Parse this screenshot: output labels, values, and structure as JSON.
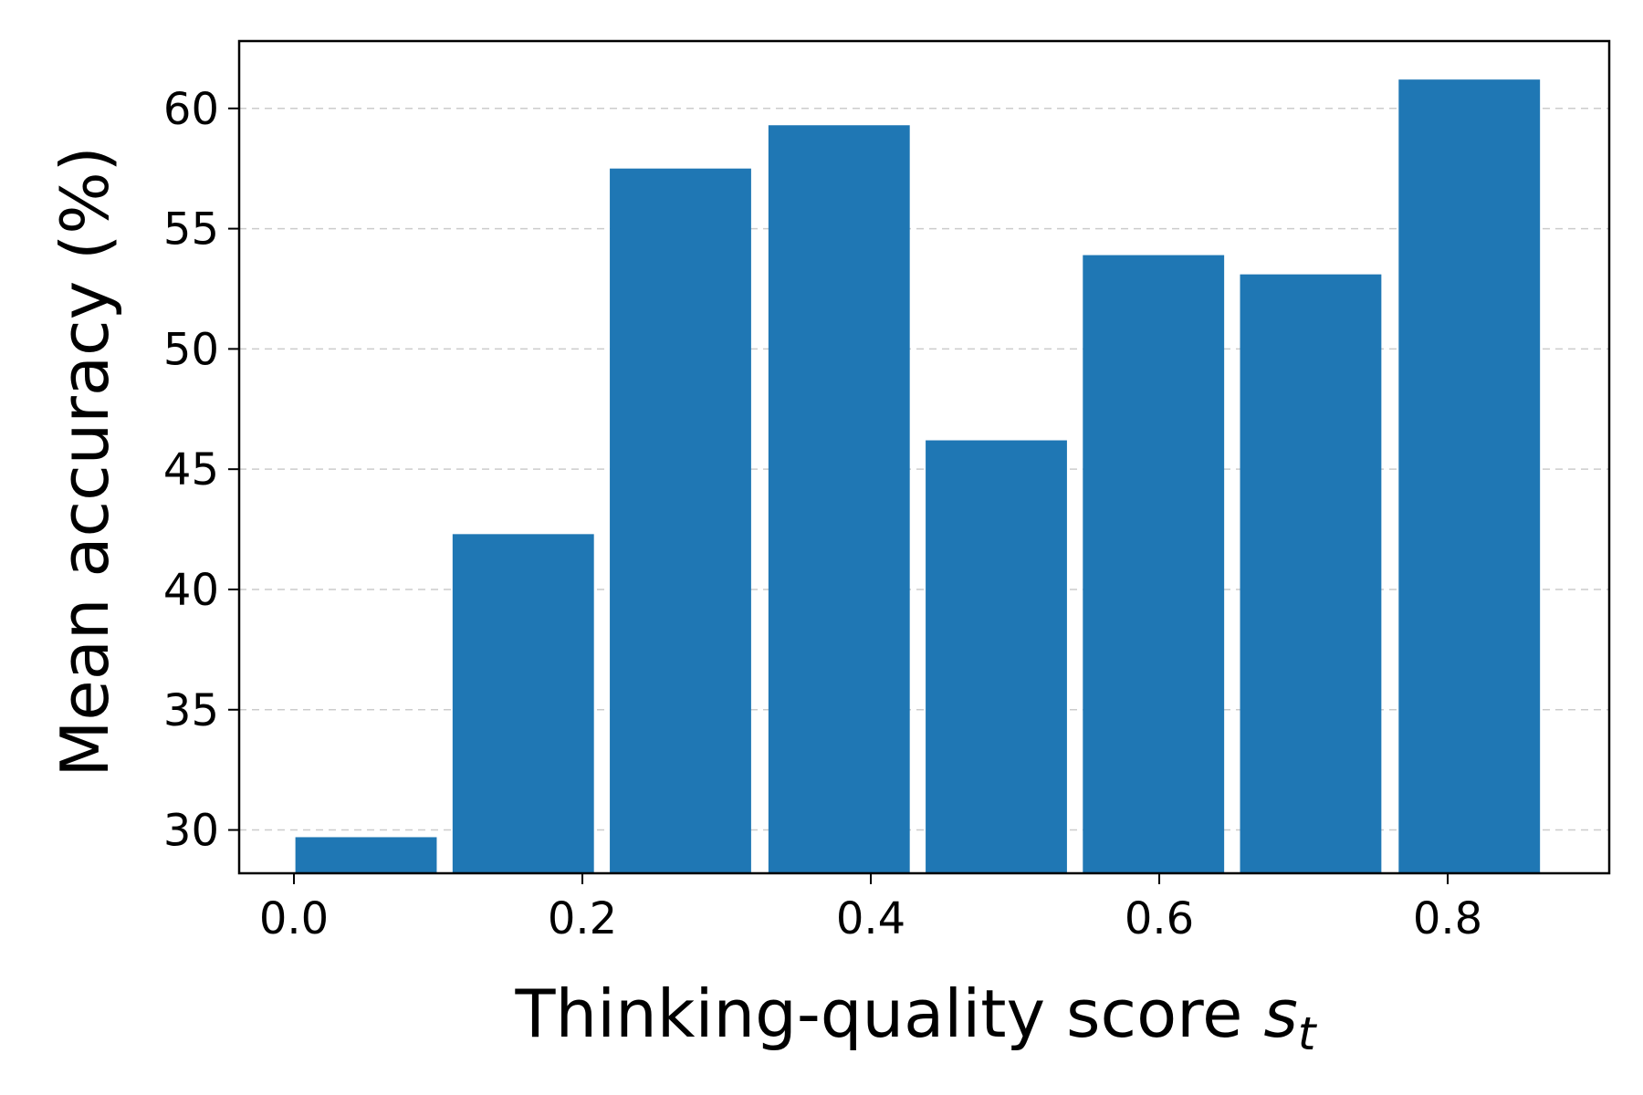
{
  "chart_data": {
    "type": "bar",
    "xlabel": "Thinking-quality score ",
    "xlabel_symbol": "s",
    "xlabel_subscript": "t",
    "ylabel": "Mean accuracy (%)",
    "x": [
      0.05,
      0.159,
      0.268,
      0.378,
      0.487,
      0.596,
      0.705,
      0.815
    ],
    "bar_width": 0.098,
    "values": [
      29.7,
      42.3,
      57.5,
      59.3,
      46.2,
      53.9,
      53.1,
      61.2
    ],
    "xlim": [
      -0.038,
      0.912
    ],
    "ylim": [
      28.2,
      62.8
    ],
    "x_ticks": [
      0.0,
      0.2,
      0.4,
      0.6,
      0.8
    ],
    "x_tick_labels": [
      "0.0",
      "0.2",
      "0.4",
      "0.6",
      "0.8"
    ],
    "y_ticks": [
      30,
      35,
      40,
      45,
      50,
      55,
      60
    ],
    "y_tick_labels": [
      "30",
      "35",
      "40",
      "45",
      "50",
      "55",
      "60"
    ],
    "grid": "horizontal dashed",
    "bar_color": "#1f77b4"
  }
}
